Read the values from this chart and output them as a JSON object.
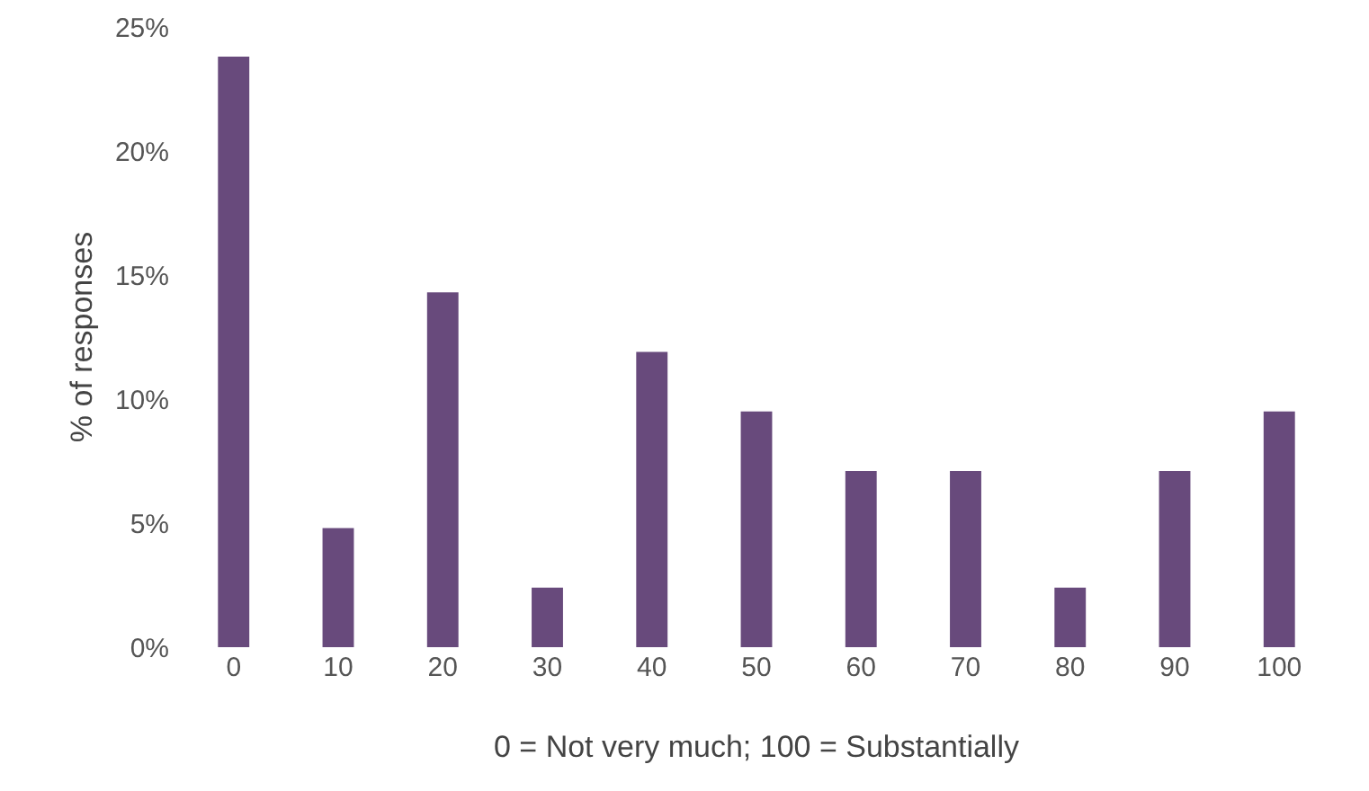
{
  "chart_data": {
    "type": "bar",
    "xlabel": "0 = Not very much; 100 = Substantially",
    "ylabel": "% of responses",
    "categories": [
      "0",
      "10",
      "20",
      "30",
      "40",
      "50",
      "60",
      "70",
      "80",
      "90",
      "100"
    ],
    "values": [
      23.8,
      4.8,
      14.3,
      2.4,
      11.9,
      9.5,
      7.1,
      7.1,
      2.4,
      7.1,
      9.5
    ],
    "color": "#684a7c",
    "ylim": [
      0,
      25
    ],
    "yticks": [
      {
        "value": 0,
        "label": "0%"
      },
      {
        "value": 5,
        "label": "5%"
      },
      {
        "value": 10,
        "label": "10%"
      },
      {
        "value": 15,
        "label": "15%"
      },
      {
        "value": 20,
        "label": "20%"
      },
      {
        "value": 25,
        "label": "25%"
      }
    ],
    "grid": false
  }
}
